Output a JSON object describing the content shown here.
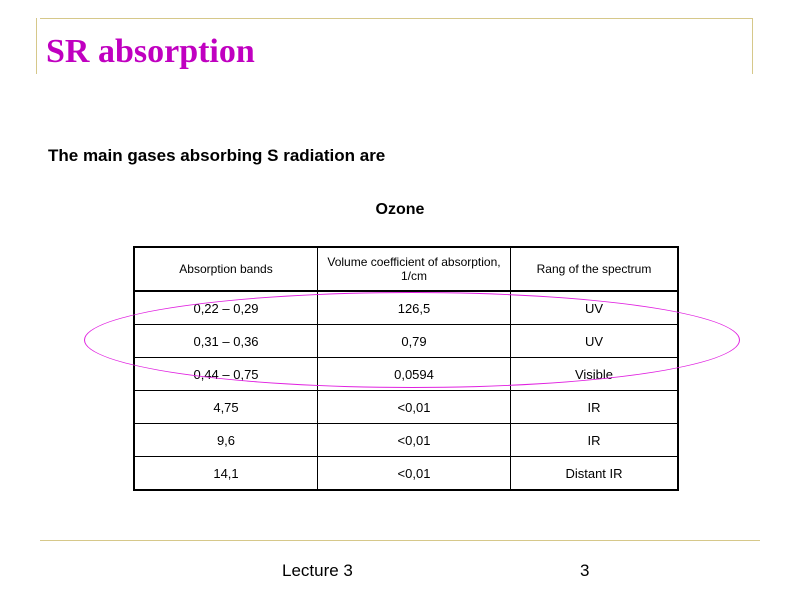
{
  "slide": {
    "title": "SR absorption",
    "subtitle": "The main gases absorbing S radiation are",
    "table_caption": "Ozone"
  },
  "table": {
    "headers": [
      "Absorption bands",
      "Volume coefficient of absorption, 1/cm",
      "Rang of the spectrum"
    ],
    "rows": [
      [
        "0,22 – 0,29",
        "126,5",
        "UV"
      ],
      [
        "0,31 – 0,36",
        "0,79",
        "UV"
      ],
      [
        "0,44 – 0,75",
        "0,0594",
        "Visible"
      ],
      [
        "4,75",
        "<0,01",
        "IR"
      ],
      [
        "9,6",
        "<0,01",
        "IR"
      ],
      [
        "14,1",
        "<0,01",
        "Distant IR"
      ]
    ]
  },
  "footer": {
    "left": "Lecture 3",
    "page_number": "3"
  },
  "colors": {
    "title": "#c000c0",
    "highlight_ellipse": "#e020e0",
    "decor_lines": "#d6c88a"
  }
}
